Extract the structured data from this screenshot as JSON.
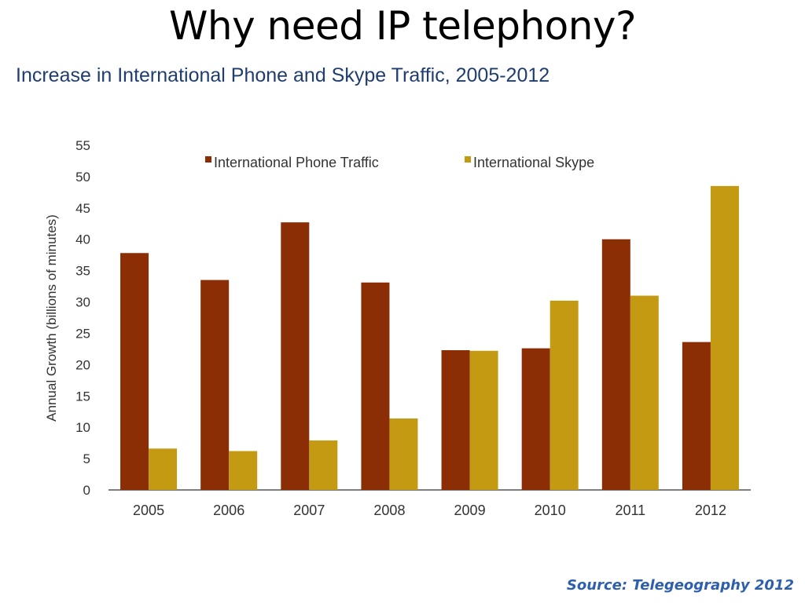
{
  "slide": {
    "title": "Why need IP telephony?",
    "source": "Source: Telegeography 2012"
  },
  "chart_data": {
    "type": "bar",
    "title": "Increase in International Phone and Skype Traffic, 2005-2012",
    "xlabel": "",
    "ylabel": "Annual Growth (billions of minutes)",
    "ylim": [
      0,
      55
    ],
    "yticks": [
      0,
      5,
      10,
      15,
      20,
      25,
      30,
      35,
      40,
      45,
      50,
      55
    ],
    "grid": false,
    "legend_position": "top",
    "categories": [
      "2005",
      "2006",
      "2007",
      "2008",
      "2009",
      "2010",
      "2011",
      "2012"
    ],
    "series": [
      {
        "name": "International Phone Traffic",
        "color": "#8b2e06",
        "values": [
          37.8,
          33.5,
          42.7,
          33.1,
          22.3,
          22.6,
          40.0,
          23.6
        ]
      },
      {
        "name": "International Skype",
        "color": "#c39a12",
        "values": [
          6.6,
          6.2,
          7.9,
          11.4,
          22.2,
          30.2,
          31.0,
          48.5
        ]
      }
    ]
  }
}
